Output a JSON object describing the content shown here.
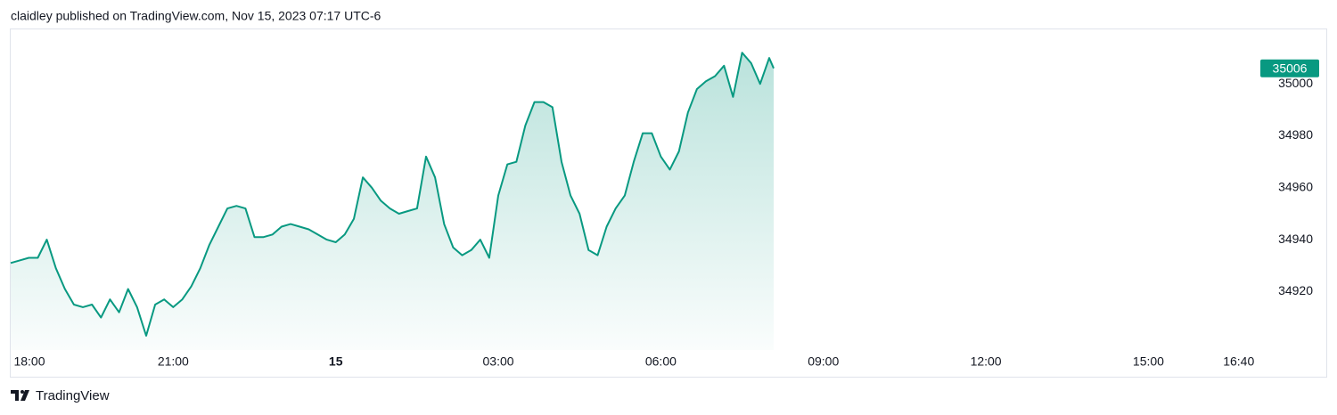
{
  "header": {
    "title": "claidley published on TradingView.com, Nov 15, 2023 07:17 UTC-6"
  },
  "footer": {
    "brand": "TradingView"
  },
  "chart_data": {
    "type": "area",
    "color": "#089981",
    "x": [
      "18:00",
      "18:10",
      "18:20",
      "18:30",
      "18:40",
      "18:50",
      "19:00",
      "19:10",
      "19:20",
      "19:30",
      "19:40",
      "19:50",
      "20:00",
      "20:10",
      "20:20",
      "20:30",
      "20:40",
      "20:50",
      "21:00",
      "21:10",
      "21:20",
      "21:30",
      "21:40",
      "21:50",
      "22:00",
      "22:10",
      "22:20",
      "22:30",
      "22:40",
      "22:50",
      "23:00",
      "23:10",
      "23:20",
      "23:30",
      "23:40",
      "23:50",
      "00:00",
      "00:10",
      "00:20",
      "00:30",
      "00:40",
      "00:50",
      "01:00",
      "01:10",
      "01:20",
      "01:30",
      "01:40",
      "01:50",
      "02:00",
      "02:10",
      "02:20",
      "02:30",
      "02:40",
      "02:50",
      "03:00",
      "03:10",
      "03:20",
      "03:30",
      "03:40",
      "03:50",
      "04:00",
      "04:10",
      "04:20",
      "04:30",
      "04:40",
      "04:50",
      "05:00",
      "05:10",
      "05:20",
      "05:30",
      "05:40",
      "05:50",
      "06:00",
      "06:10",
      "06:20",
      "06:30",
      "06:40",
      "06:50",
      "07:00",
      "07:10",
      "07:20",
      "07:30",
      "07:40",
      "07:50",
      "08:00",
      "08:05"
    ],
    "values": [
      34931,
      34932,
      34933,
      34933,
      34940,
      34929,
      34921,
      34915,
      34914,
      34915,
      34910,
      34917,
      34912,
      34921,
      34914,
      34903,
      34915,
      34917,
      34914,
      34917,
      34922,
      34929,
      34938,
      34945,
      34952,
      34953,
      34952,
      34941,
      34941,
      34942,
      34945,
      34946,
      34945,
      34944,
      34942,
      34940,
      34939,
      34942,
      34948,
      34964,
      34960,
      34955,
      34952,
      34950,
      34951,
      34952,
      34972,
      34964,
      34946,
      34937,
      34934,
      34936,
      34940,
      34933,
      34957,
      34969,
      34970,
      34984,
      34993,
      34993,
      34991,
      34970,
      34957,
      34950,
      34936,
      34934,
      34945,
      34952,
      34957,
      34970,
      34981,
      34981,
      34972,
      34967,
      34974,
      34989,
      34998,
      35001,
      35003,
      35007,
      34995,
      35012,
      35008,
      35000,
      35010,
      35006
    ],
    "xlim": [
      "18:00",
      "17:00"
    ],
    "xticks": [
      "18:00",
      "21:00",
      {
        "value": "00:00",
        "label": "15"
      },
      "03:00",
      "06:00",
      "09:00",
      "12:00",
      "15:00",
      "16:40"
    ],
    "ylim": [
      34897.5,
      35021
    ],
    "yticks": [
      34920,
      34940,
      34960,
      34980,
      35000
    ],
    "grid": false
  }
}
